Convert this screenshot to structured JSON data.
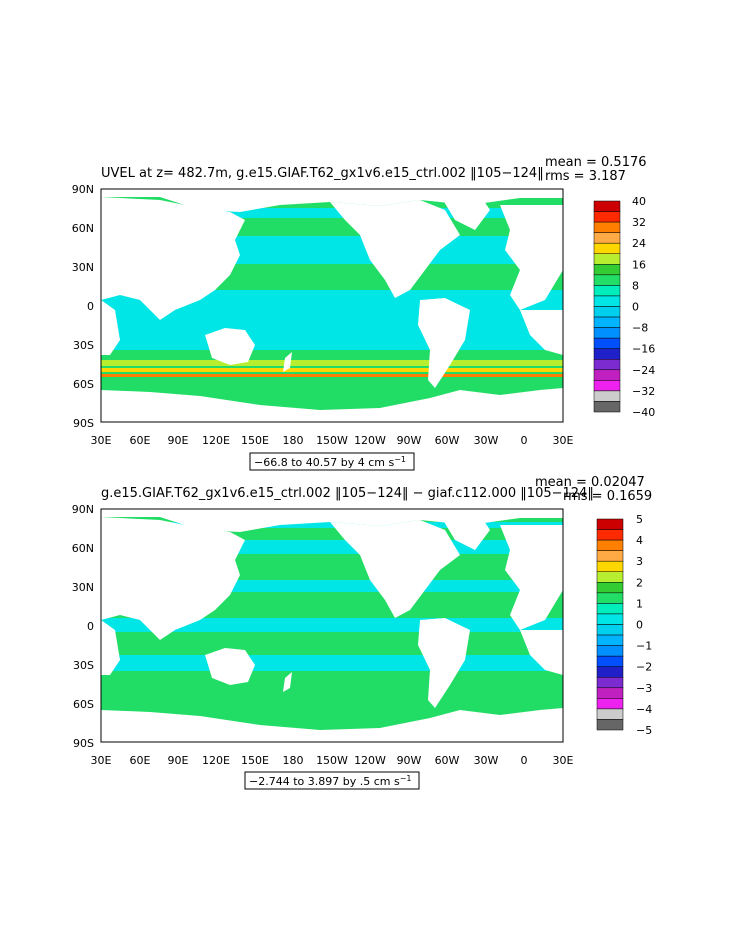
{
  "panels": [
    {
      "title": "UVEL at z= 482.7m, g.e15.GIAF.T62_gx1v6.e15_ctrl.002 ‖105−124‖",
      "mean_label": "mean = 0.5176",
      "rms_label": "rms = 3.187",
      "range_label": "−66.8 to 40.57 by 4 cm s",
      "range_unit_sup": "−1",
      "colorbar": {
        "labels": [
          "40",
          "32",
          "24",
          "16",
          "8",
          "0",
          "−8",
          "−16",
          "−24",
          "−32",
          "−40"
        ],
        "colors": [
          "#cc0000",
          "#ff2a00",
          "#ff7f00",
          "#ffaa44",
          "#ffd700",
          "#b8ee30",
          "#33cc33",
          "#22dd66",
          "#00eebb",
          "#00e5e5",
          "#00d0ee",
          "#00b4ff",
          "#0090ff",
          "#0050ff",
          "#2020c8",
          "#7b2bd0",
          "#c020c0",
          "#ee22ee",
          "#cccccc",
          "#666666"
        ]
      }
    },
    {
      "title": "g.e15.GIAF.T62_gx1v6.e15_ctrl.002 ‖105−124‖ − giaf.c112.000 ‖105−124‖",
      "mean_label": "mean = 0.02047",
      "rms_label": "rms = 0.1659",
      "range_label": "−2.744 to 3.897 by .5 cm s",
      "range_unit_sup": "−1",
      "colorbar": {
        "labels": [
          "5",
          "4",
          "3",
          "2",
          "1",
          "0",
          "−1",
          "−2",
          "−3",
          "−4",
          "−5"
        ],
        "colors": [
          "#cc0000",
          "#ff2a00",
          "#ff7f00",
          "#ffaa44",
          "#ffd700",
          "#b8ee30",
          "#33cc33",
          "#22dd66",
          "#00eebb",
          "#00e5e5",
          "#00d0ee",
          "#00b4ff",
          "#0090ff",
          "#0050ff",
          "#2020c8",
          "#7b2bd0",
          "#c020c0",
          "#ee22ee",
          "#cccccc",
          "#666666"
        ]
      }
    }
  ],
  "axes": {
    "lat_labels": [
      "90N",
      "60N",
      "30N",
      "0",
      "30S",
      "60S",
      "90S"
    ],
    "lon_labels": [
      "30E",
      "60E",
      "90E",
      "120E",
      "150E",
      "180",
      "150W",
      "120W",
      "90W",
      "60W",
      "30W",
      "0",
      "30E"
    ]
  },
  "colors": {
    "ocean_main": "#21dd66",
    "ocean_cyan": "#00e5e5",
    "land": "#ffffff"
  }
}
